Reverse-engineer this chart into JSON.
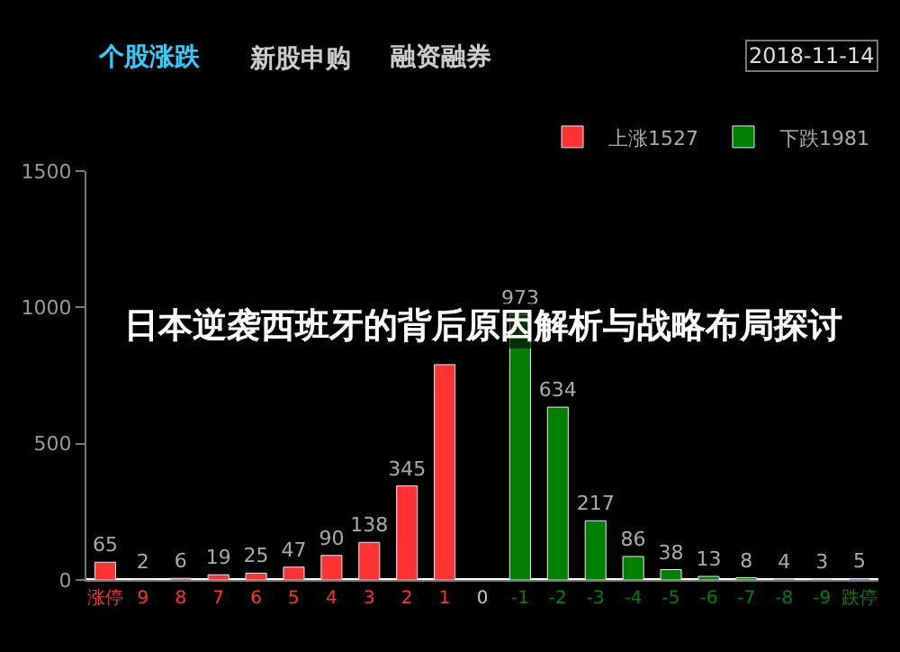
{
  "chart_data": {
    "type": "bar",
    "title": "日本逆袭西班牙的背后原因解析与战略布局探讨",
    "annotations": [
      "个股涨跌",
      "新股申购",
      "融资融券",
      "2018-11-14"
    ],
    "categories": [
      "涨停",
      "9",
      "8",
      "7",
      "6",
      "5",
      "4",
      "3",
      "2",
      "1",
      "0",
      "-1",
      "-2",
      "-3",
      "-4",
      "-5",
      "-6",
      "-7",
      "-8",
      "-9",
      "跌停"
    ],
    "series": [
      {
        "name": "上涨1527",
        "color": "#ff3333",
        "values": [
          65,
          2,
          6,
          19,
          25,
          47,
          90,
          138,
          345,
          790,
          null,
          null,
          null,
          null,
          null,
          null,
          null,
          null,
          null,
          null,
          null
        ],
        "value_labels": [
          "65",
          "2",
          "6",
          "19",
          "25",
          "47",
          "90",
          "138",
          "345",
          null,
          null,
          null,
          null,
          null,
          null,
          null,
          null,
          null,
          null,
          null,
          null
        ]
      },
      {
        "name": "下跌1981",
        "color": "#008000",
        "values": [
          null,
          null,
          null,
          null,
          null,
          null,
          null,
          null,
          null,
          null,
          null,
          973,
          634,
          217,
          86,
          38,
          13,
          8,
          4,
          3,
          5
        ],
        "value_labels": [
          null,
          null,
          null,
          null,
          null,
          null,
          null,
          null,
          null,
          null,
          null,
          "973",
          "634",
          "217",
          "86",
          "38",
          "13",
          "8",
          "4",
          "3",
          "5"
        ]
      }
    ],
    "ylim": [
      0,
      1500
    ],
    "yticks": [
      0,
      500,
      1000,
      1500
    ],
    "grid": false,
    "legend": "top right"
  }
}
